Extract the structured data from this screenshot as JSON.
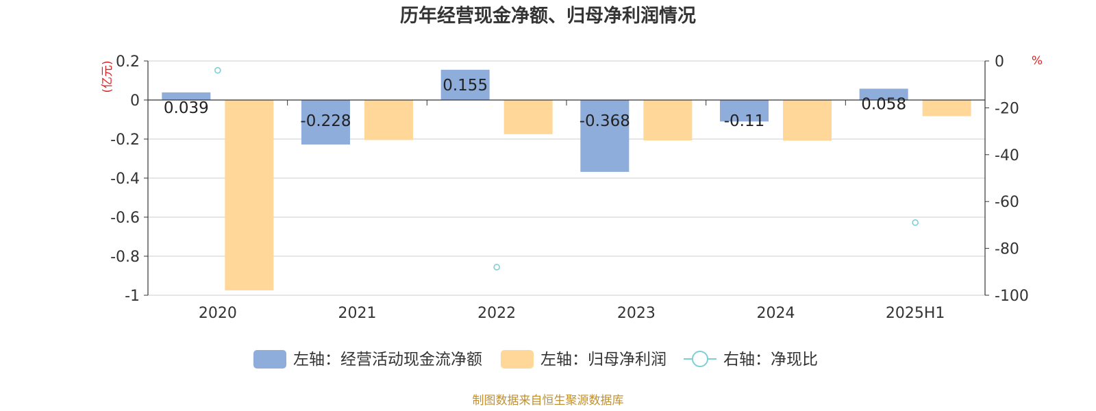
{
  "chart_data": {
    "type": "bar",
    "title": "历年经营现金净额、归母净利润情况",
    "categories": [
      "2020",
      "2021",
      "2022",
      "2023",
      "2024",
      "2025H1"
    ],
    "series": [
      {
        "name": "左轴：经营活动现金流净额",
        "axis": "left",
        "kind": "bar",
        "color": "#8EADDA",
        "values": [
          0.039,
          -0.228,
          0.155,
          -0.368,
          -0.11,
          0.058
        ],
        "labels": [
          "0.039",
          "-0.228",
          "0.155",
          "-0.368",
          "-0.11",
          "0.058"
        ]
      },
      {
        "name": "左轴：归母净利润",
        "axis": "left",
        "kind": "bar",
        "color": "#FFD899",
        "values": [
          -0.975,
          -0.205,
          -0.175,
          -0.207,
          -0.208,
          -0.083
        ]
      },
      {
        "name": "右轴：净现比",
        "axis": "right",
        "kind": "scatter",
        "color": "#7DCFD6",
        "values": [
          -4,
          null,
          -88,
          null,
          null,
          -69
        ]
      }
    ],
    "left_axis": {
      "unit": "(亿元)",
      "min": -1,
      "max": 0.2,
      "ticks": [
        0.2,
        0,
        -0.2,
        -0.4,
        -0.6,
        -0.8,
        -1
      ],
      "tick_labels": [
        "0.2",
        "0",
        "-0.2",
        "-0.4",
        "-0.6",
        "-0.8",
        "-1"
      ]
    },
    "right_axis": {
      "unit": "%",
      "min": -100,
      "max": 0,
      "ticks": [
        0,
        -20,
        -40,
        -60,
        -80,
        -100
      ],
      "tick_labels": [
        "0",
        "-20",
        "-40",
        "-60",
        "-80",
        "-100"
      ]
    },
    "grid": true,
    "legend_position": "bottom",
    "source": "制图数据来自恒生聚源数据库",
    "colors": {
      "axis_unit": "#E02020",
      "source": "#C09030",
      "grid": "#CCCCCC"
    }
  }
}
